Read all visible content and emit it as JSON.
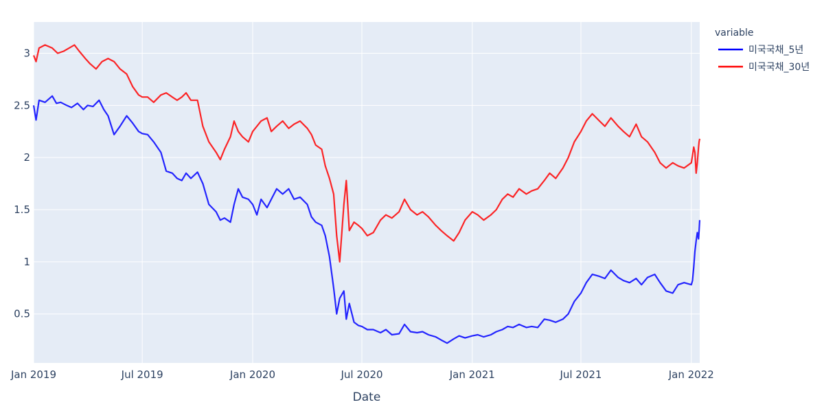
{
  "chart_data": {
    "type": "line",
    "xlabel": "Date",
    "ylabel": "",
    "x_range": [
      "2019-01-01",
      "2022-01-15"
    ],
    "ylim": [
      0.03,
      3.3
    ],
    "grid": true,
    "background": "#e5ecf6",
    "legend": {
      "title": "variable",
      "placement": "top-right"
    },
    "x_ticks": [
      {
        "date": "2019-01-01",
        "label": "Jan 2019"
      },
      {
        "date": "2019-07-01",
        "label": "Jul 2019"
      },
      {
        "date": "2020-01-01",
        "label": "Jan 2020"
      },
      {
        "date": "2020-07-01",
        "label": "Jul 2020"
      },
      {
        "date": "2021-01-01",
        "label": "Jan 2021"
      },
      {
        "date": "2021-07-01",
        "label": "Jul 2021"
      },
      {
        "date": "2022-01-01",
        "label": "Jan 2022"
      }
    ],
    "y_ticks": [
      {
        "value": 0.5,
        "label": "0.5"
      },
      {
        "value": 1,
        "label": "1"
      },
      {
        "value": 1.5,
        "label": "1.5"
      },
      {
        "value": 2,
        "label": "2"
      },
      {
        "value": 2.5,
        "label": "2.5"
      },
      {
        "value": 3,
        "label": "3"
      }
    ],
    "series": [
      {
        "name": "미국국채_5년",
        "color": "#0000ff",
        "points": [
          [
            "2019-01-01",
            2.5
          ],
          [
            "2019-01-05",
            2.36
          ],
          [
            "2019-01-10",
            2.55
          ],
          [
            "2019-01-20",
            2.53
          ],
          [
            "2019-02-01",
            2.59
          ],
          [
            "2019-02-08",
            2.52
          ],
          [
            "2019-02-15",
            2.53
          ],
          [
            "2019-02-25",
            2.5
          ],
          [
            "2019-03-05",
            2.48
          ],
          [
            "2019-03-15",
            2.52
          ],
          [
            "2019-03-25",
            2.46
          ],
          [
            "2019-04-01",
            2.5
          ],
          [
            "2019-04-10",
            2.49
          ],
          [
            "2019-04-20",
            2.55
          ],
          [
            "2019-04-28",
            2.46
          ],
          [
            "2019-05-05",
            2.4
          ],
          [
            "2019-05-15",
            2.22
          ],
          [
            "2019-05-25",
            2.3
          ],
          [
            "2019-06-05",
            2.4
          ],
          [
            "2019-06-15",
            2.33
          ],
          [
            "2019-06-25",
            2.25
          ],
          [
            "2019-07-01",
            2.23
          ],
          [
            "2019-07-10",
            2.22
          ],
          [
            "2019-07-20",
            2.15
          ],
          [
            "2019-08-01",
            2.05
          ],
          [
            "2019-08-10",
            1.87
          ],
          [
            "2019-08-20",
            1.85
          ],
          [
            "2019-08-28",
            1.8
          ],
          [
            "2019-09-05",
            1.78
          ],
          [
            "2019-09-12",
            1.85
          ],
          [
            "2019-09-20",
            1.8
          ],
          [
            "2019-10-01",
            1.86
          ],
          [
            "2019-10-10",
            1.75
          ],
          [
            "2019-10-20",
            1.55
          ],
          [
            "2019-11-01",
            1.48
          ],
          [
            "2019-11-08",
            1.4
          ],
          [
            "2019-11-15",
            1.42
          ],
          [
            "2019-11-25",
            1.38
          ],
          [
            "2019-12-01",
            1.55
          ],
          [
            "2019-12-08",
            1.7
          ],
          [
            "2019-12-15",
            1.62
          ],
          [
            "2019-12-25",
            1.6
          ],
          [
            "2020-01-01",
            1.55
          ],
          [
            "2020-01-08",
            1.45
          ],
          [
            "2020-01-15",
            1.6
          ],
          [
            "2020-01-25",
            1.52
          ],
          [
            "2020-02-01",
            1.6
          ],
          [
            "2020-02-10",
            1.7
          ],
          [
            "2020-02-20",
            1.65
          ],
          [
            "2020-03-01",
            1.7
          ],
          [
            "2020-03-10",
            1.6
          ],
          [
            "2020-03-20",
            1.62
          ],
          [
            "2020-04-01",
            1.55
          ],
          [
            "2020-04-08",
            1.43
          ],
          [
            "2020-04-15",
            1.38
          ],
          [
            "2020-04-25",
            1.35
          ],
          [
            "2020-05-01",
            1.25
          ],
          [
            "2020-05-08",
            1.05
          ],
          [
            "2020-05-15",
            0.75
          ],
          [
            "2020-05-20",
            0.5
          ],
          [
            "2020-05-25",
            0.65
          ],
          [
            "2020-06-01",
            0.72
          ],
          [
            "2020-06-05",
            0.45
          ],
          [
            "2020-06-10",
            0.6
          ],
          [
            "2020-06-18",
            0.42
          ],
          [
            "2020-06-25",
            0.39
          ],
          [
            "2020-07-01",
            0.38
          ],
          [
            "2020-07-10",
            0.35
          ],
          [
            "2020-07-20",
            0.35
          ],
          [
            "2020-08-01",
            0.32
          ],
          [
            "2020-08-10",
            0.35
          ],
          [
            "2020-08-20",
            0.3
          ],
          [
            "2020-09-01",
            0.31
          ],
          [
            "2020-09-10",
            0.4
          ],
          [
            "2020-09-20",
            0.33
          ],
          [
            "2020-10-01",
            0.32
          ],
          [
            "2020-10-10",
            0.33
          ],
          [
            "2020-10-20",
            0.3
          ],
          [
            "2020-11-01",
            0.28
          ],
          [
            "2020-11-10",
            0.25
          ],
          [
            "2020-11-20",
            0.22
          ],
          [
            "2020-12-01",
            0.26
          ],
          [
            "2020-12-10",
            0.29
          ],
          [
            "2020-12-20",
            0.27
          ],
          [
            "2021-01-01",
            0.29
          ],
          [
            "2021-01-10",
            0.3
          ],
          [
            "2021-01-20",
            0.28
          ],
          [
            "2021-02-01",
            0.3
          ],
          [
            "2021-02-10",
            0.33
          ],
          [
            "2021-02-20",
            0.35
          ],
          [
            "2021-03-01",
            0.38
          ],
          [
            "2021-03-10",
            0.37
          ],
          [
            "2021-03-20",
            0.4
          ],
          [
            "2021-04-01",
            0.37
          ],
          [
            "2021-04-10",
            0.38
          ],
          [
            "2021-04-20",
            0.37
          ],
          [
            "2021-05-01",
            0.45
          ],
          [
            "2021-05-10",
            0.44
          ],
          [
            "2021-05-20",
            0.42
          ],
          [
            "2021-06-01",
            0.45
          ],
          [
            "2021-06-10",
            0.5
          ],
          [
            "2021-06-20",
            0.62
          ],
          [
            "2021-07-01",
            0.7
          ],
          [
            "2021-07-10",
            0.8
          ],
          [
            "2021-07-20",
            0.88
          ],
          [
            "2021-08-01",
            0.86
          ],
          [
            "2021-08-10",
            0.84
          ],
          [
            "2021-08-20",
            0.92
          ],
          [
            "2021-09-01",
            0.85
          ],
          [
            "2021-09-10",
            0.82
          ],
          [
            "2021-09-20",
            0.8
          ],
          [
            "2021-10-01",
            0.84
          ],
          [
            "2021-10-10",
            0.78
          ],
          [
            "2021-10-20",
            0.85
          ],
          [
            "2021-11-01",
            0.88
          ],
          [
            "2021-11-10",
            0.8
          ],
          [
            "2021-11-20",
            0.72
          ],
          [
            "2021-12-01",
            0.7
          ],
          [
            "2021-12-10",
            0.78
          ],
          [
            "2021-12-20",
            0.8
          ],
          [
            "2022-01-01",
            0.78
          ],
          [
            "2022-01-03",
            0.82
          ],
          [
            "2022-01-05",
            0.95
          ],
          [
            "2022-01-07",
            1.1
          ],
          [
            "2022-01-09",
            1.2
          ],
          [
            "2022-01-11",
            1.28
          ],
          [
            "2022-01-13",
            1.22
          ],
          [
            "2022-01-14",
            1.3
          ],
          [
            "2022-01-15",
            1.4
          ]
        ]
      },
      {
        "name": "미국국채_30년",
        "color": "#ff0000",
        "points": [
          [
            "2019-01-01",
            2.98
          ],
          [
            "2019-01-05",
            2.92
          ],
          [
            "2019-01-10",
            3.05
          ],
          [
            "2019-01-20",
            3.08
          ],
          [
            "2019-02-01",
            3.05
          ],
          [
            "2019-02-10",
            3.0
          ],
          [
            "2019-02-20",
            3.02
          ],
          [
            "2019-03-01",
            3.05
          ],
          [
            "2019-03-10",
            3.08
          ],
          [
            "2019-03-18",
            3.02
          ],
          [
            "2019-03-28",
            2.95
          ],
          [
            "2019-04-05",
            2.9
          ],
          [
            "2019-04-15",
            2.85
          ],
          [
            "2019-04-25",
            2.92
          ],
          [
            "2019-05-05",
            2.95
          ],
          [
            "2019-05-15",
            2.92
          ],
          [
            "2019-05-25",
            2.85
          ],
          [
            "2019-06-05",
            2.8
          ],
          [
            "2019-06-15",
            2.68
          ],
          [
            "2019-06-25",
            2.6
          ],
          [
            "2019-07-01",
            2.58
          ],
          [
            "2019-07-10",
            2.58
          ],
          [
            "2019-07-20",
            2.53
          ],
          [
            "2019-08-01",
            2.6
          ],
          [
            "2019-08-10",
            2.62
          ],
          [
            "2019-08-20",
            2.58
          ],
          [
            "2019-08-28",
            2.55
          ],
          [
            "2019-09-05",
            2.58
          ],
          [
            "2019-09-12",
            2.62
          ],
          [
            "2019-09-20",
            2.55
          ],
          [
            "2019-10-01",
            2.55
          ],
          [
            "2019-10-10",
            2.3
          ],
          [
            "2019-10-20",
            2.15
          ],
          [
            "2019-11-01",
            2.05
          ],
          [
            "2019-11-08",
            1.98
          ],
          [
            "2019-11-15",
            2.08
          ],
          [
            "2019-11-25",
            2.2
          ],
          [
            "2019-12-01",
            2.35
          ],
          [
            "2019-12-08",
            2.25
          ],
          [
            "2019-12-15",
            2.2
          ],
          [
            "2019-12-25",
            2.15
          ],
          [
            "2020-01-01",
            2.25
          ],
          [
            "2020-01-08",
            2.3
          ],
          [
            "2020-01-15",
            2.35
          ],
          [
            "2020-01-25",
            2.38
          ],
          [
            "2020-02-01",
            2.25
          ],
          [
            "2020-02-10",
            2.3
          ],
          [
            "2020-02-20",
            2.35
          ],
          [
            "2020-03-01",
            2.28
          ],
          [
            "2020-03-10",
            2.32
          ],
          [
            "2020-03-20",
            2.35
          ],
          [
            "2020-04-01",
            2.28
          ],
          [
            "2020-04-08",
            2.22
          ],
          [
            "2020-04-15",
            2.12
          ],
          [
            "2020-04-25",
            2.08
          ],
          [
            "2020-05-01",
            1.92
          ],
          [
            "2020-05-08",
            1.8
          ],
          [
            "2020-05-15",
            1.65
          ],
          [
            "2020-05-20",
            1.25
          ],
          [
            "2020-05-25",
            1.0
          ],
          [
            "2020-06-01",
            1.55
          ],
          [
            "2020-06-05",
            1.78
          ],
          [
            "2020-06-10",
            1.3
          ],
          [
            "2020-06-18",
            1.38
          ],
          [
            "2020-06-25",
            1.35
          ],
          [
            "2020-07-01",
            1.32
          ],
          [
            "2020-07-10",
            1.25
          ],
          [
            "2020-07-20",
            1.28
          ],
          [
            "2020-08-01",
            1.4
          ],
          [
            "2020-08-10",
            1.45
          ],
          [
            "2020-08-20",
            1.42
          ],
          [
            "2020-09-01",
            1.48
          ],
          [
            "2020-09-10",
            1.6
          ],
          [
            "2020-09-20",
            1.5
          ],
          [
            "2020-10-01",
            1.45
          ],
          [
            "2020-10-10",
            1.48
          ],
          [
            "2020-10-20",
            1.43
          ],
          [
            "2020-11-01",
            1.35
          ],
          [
            "2020-11-10",
            1.3
          ],
          [
            "2020-11-20",
            1.25
          ],
          [
            "2020-12-01",
            1.2
          ],
          [
            "2020-12-10",
            1.28
          ],
          [
            "2020-12-20",
            1.4
          ],
          [
            "2021-01-01",
            1.48
          ],
          [
            "2021-01-10",
            1.45
          ],
          [
            "2021-01-20",
            1.4
          ],
          [
            "2021-02-01",
            1.45
          ],
          [
            "2021-02-10",
            1.5
          ],
          [
            "2021-02-20",
            1.6
          ],
          [
            "2021-03-01",
            1.65
          ],
          [
            "2021-03-10",
            1.62
          ],
          [
            "2021-03-20",
            1.7
          ],
          [
            "2021-04-01",
            1.65
          ],
          [
            "2021-04-10",
            1.68
          ],
          [
            "2021-04-20",
            1.7
          ],
          [
            "2021-05-01",
            1.78
          ],
          [
            "2021-05-10",
            1.85
          ],
          [
            "2021-05-20",
            1.8
          ],
          [
            "2021-06-01",
            1.9
          ],
          [
            "2021-06-10",
            2.0
          ],
          [
            "2021-06-20",
            2.15
          ],
          [
            "2021-07-01",
            2.25
          ],
          [
            "2021-07-10",
            2.35
          ],
          [
            "2021-07-20",
            2.42
          ],
          [
            "2021-08-01",
            2.35
          ],
          [
            "2021-08-10",
            2.3
          ],
          [
            "2021-08-20",
            2.38
          ],
          [
            "2021-09-01",
            2.3
          ],
          [
            "2021-09-10",
            2.25
          ],
          [
            "2021-09-20",
            2.2
          ],
          [
            "2021-10-01",
            2.32
          ],
          [
            "2021-10-10",
            2.2
          ],
          [
            "2021-10-20",
            2.15
          ],
          [
            "2021-11-01",
            2.05
          ],
          [
            "2021-11-10",
            1.95
          ],
          [
            "2021-11-20",
            1.9
          ],
          [
            "2021-12-01",
            1.95
          ],
          [
            "2021-12-10",
            1.92
          ],
          [
            "2021-12-20",
            1.9
          ],
          [
            "2022-01-01",
            1.95
          ],
          [
            "2022-01-03",
            2.02
          ],
          [
            "2022-01-05",
            2.1
          ],
          [
            "2022-01-07",
            2.05
          ],
          [
            "2022-01-09",
            1.85
          ],
          [
            "2022-01-11",
            1.95
          ],
          [
            "2022-01-13",
            2.1
          ],
          [
            "2022-01-14",
            2.15
          ],
          [
            "2022-01-15",
            2.18
          ]
        ]
      }
    ]
  }
}
